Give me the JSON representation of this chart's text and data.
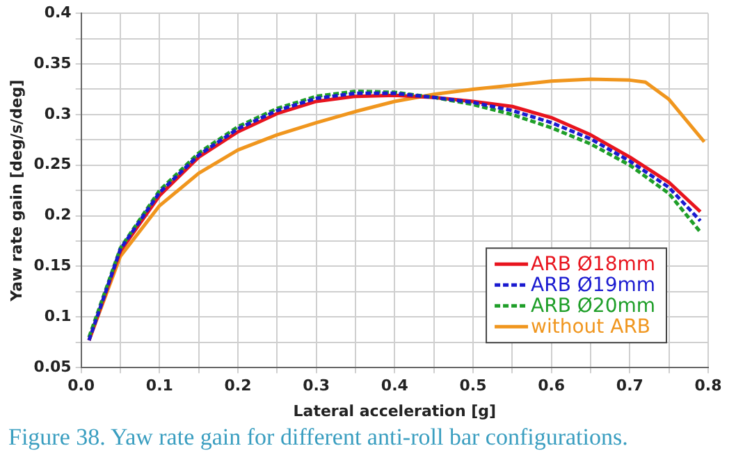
{
  "chart_data": {
    "type": "line",
    "xlabel": "Lateral acceleration [g]",
    "ylabel": "Yaw rate gain [deg/s/deg]",
    "annotations": [
      "Figure 38. Yaw rate gain for different anti-roll bar configurations."
    ],
    "xlim": [
      0,
      0.8
    ],
    "ylim": [
      0.05,
      0.4
    ],
    "xticks": [
      {
        "value": 0,
        "label": "0.0"
      },
      {
        "value": 0.05,
        "label": null
      },
      {
        "value": 0.1,
        "label": "0.1"
      },
      {
        "value": 0.15,
        "label": null
      },
      {
        "value": 0.2,
        "label": "0.2"
      },
      {
        "value": 0.25,
        "label": null
      },
      {
        "value": 0.3,
        "label": "0.3"
      },
      {
        "value": 0.35,
        "label": null
      },
      {
        "value": 0.4,
        "label": "0.4"
      },
      {
        "value": 0.45,
        "label": null
      },
      {
        "value": 0.5,
        "label": "0.5"
      },
      {
        "value": 0.55,
        "label": null
      },
      {
        "value": 0.6,
        "label": "0.6"
      },
      {
        "value": 0.65,
        "label": null
      },
      {
        "value": 0.7,
        "label": "0.7"
      },
      {
        "value": 0.75,
        "label": null
      },
      {
        "value": 0.8,
        "label": "0.8"
      }
    ],
    "yticks": [
      0.05,
      {
        "value": 0.075,
        "label": null
      },
      0.1,
      {
        "value": 0.125,
        "label": null
      },
      0.15,
      {
        "value": 0.175,
        "label": null
      },
      0.2,
      {
        "value": 0.225,
        "label": null
      },
      0.25,
      {
        "value": 0.275,
        "label": null
      },
      0.3,
      {
        "value": 0.325,
        "label": null
      },
      0.35,
      {
        "value": 0.375,
        "label": null
      },
      0.4
    ],
    "grid": true,
    "legend": "bottom right",
    "marker": "none",
    "series": [
      {
        "name": "ARB Ø18mm",
        "color": "#e8141e",
        "line_style": "solid",
        "x": [
          0.01,
          0.05,
          0.1,
          0.15,
          0.2,
          0.25,
          0.3,
          0.35,
          0.4,
          0.45,
          0.5,
          0.55,
          0.6,
          0.65,
          0.7,
          0.75,
          0.79
        ],
        "values": [
          0.077,
          0.165,
          0.22,
          0.258,
          0.283,
          0.301,
          0.313,
          0.318,
          0.319,
          0.317,
          0.313,
          0.308,
          0.297,
          0.28,
          0.258,
          0.233,
          0.204
        ]
      },
      {
        "name": "ARB Ø19mm",
        "color": "#1a1ad0",
        "line_style": "dashed",
        "x": [
          0.01,
          0.05,
          0.1,
          0.15,
          0.2,
          0.25,
          0.3,
          0.35,
          0.4,
          0.45,
          0.5,
          0.55,
          0.6,
          0.65,
          0.7,
          0.75,
          0.79
        ],
        "values": [
          0.077,
          0.167,
          0.223,
          0.26,
          0.286,
          0.304,
          0.316,
          0.321,
          0.321,
          0.317,
          0.312,
          0.304,
          0.292,
          0.276,
          0.254,
          0.228,
          0.195
        ]
      },
      {
        "name": "ARB Ø20mm",
        "color": "#1e9e28",
        "line_style": "dashed",
        "x": [
          0.01,
          0.05,
          0.1,
          0.15,
          0.2,
          0.25,
          0.3,
          0.35,
          0.4,
          0.45,
          0.5,
          0.55,
          0.6,
          0.65,
          0.7,
          0.75,
          0.79
        ],
        "values": [
          0.08,
          0.168,
          0.225,
          0.262,
          0.288,
          0.306,
          0.318,
          0.323,
          0.322,
          0.317,
          0.31,
          0.3,
          0.287,
          0.271,
          0.25,
          0.222,
          0.184
        ]
      },
      {
        "name": "without ARB",
        "color": "#f0961e",
        "line_style": "solid",
        "x": [
          0.01,
          0.05,
          0.1,
          0.15,
          0.2,
          0.25,
          0.3,
          0.35,
          0.4,
          0.45,
          0.5,
          0.55,
          0.6,
          0.65,
          0.7,
          0.72,
          0.75,
          0.795
        ],
        "values": [
          0.077,
          0.16,
          0.21,
          0.242,
          0.265,
          0.28,
          0.292,
          0.303,
          0.313,
          0.32,
          0.325,
          0.329,
          0.333,
          0.335,
          0.334,
          0.332,
          0.315,
          0.273
        ]
      }
    ]
  }
}
